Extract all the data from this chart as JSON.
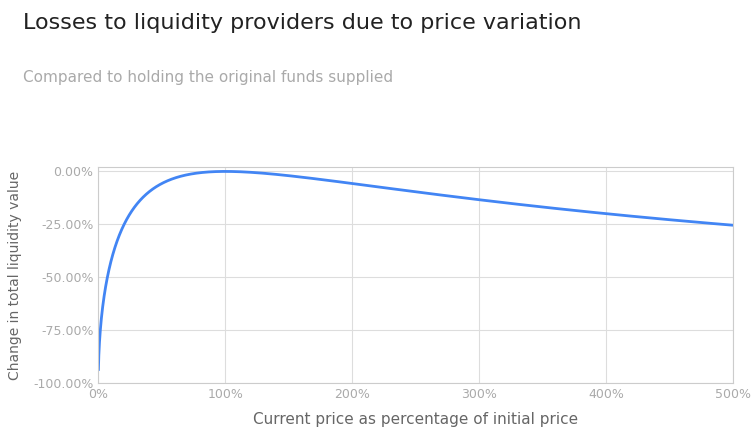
{
  "title": "Losses to liquidity providers due to price variation",
  "subtitle": "Compared to holding the original funds supplied",
  "xlabel": "Current price as percentage of initial price",
  "ylabel": "Change in total liquidity value",
  "title_fontsize": 16,
  "subtitle_fontsize": 11,
  "xlabel_fontsize": 11,
  "ylabel_fontsize": 10,
  "title_color": "#222222",
  "subtitle_color": "#aaaaaa",
  "xlabel_color": "#666666",
  "ylabel_color": "#666666",
  "line_color": "#4285f4",
  "line_width": 2.0,
  "background_color": "#ffffff",
  "axes_bg_color": "#ffffff",
  "grid_color": "#dddddd",
  "xlim": [
    0,
    5.0
  ],
  "ylim": [
    -1.0,
    0.02
  ],
  "xticks": [
    0,
    1,
    2,
    3,
    4,
    5
  ],
  "xtick_labels": [
    "0%",
    "100%",
    "200%",
    "300%",
    "400%",
    "500%"
  ],
  "yticks": [
    0.0,
    -0.25,
    -0.5,
    -0.75,
    -1.0
  ],
  "ytick_labels": [
    "0.00%",
    "-25.00%",
    "-50.00%",
    "-75.00%",
    "-100.00%"
  ],
  "tick_color": "#aaaaaa",
  "tick_fontsize": 9
}
